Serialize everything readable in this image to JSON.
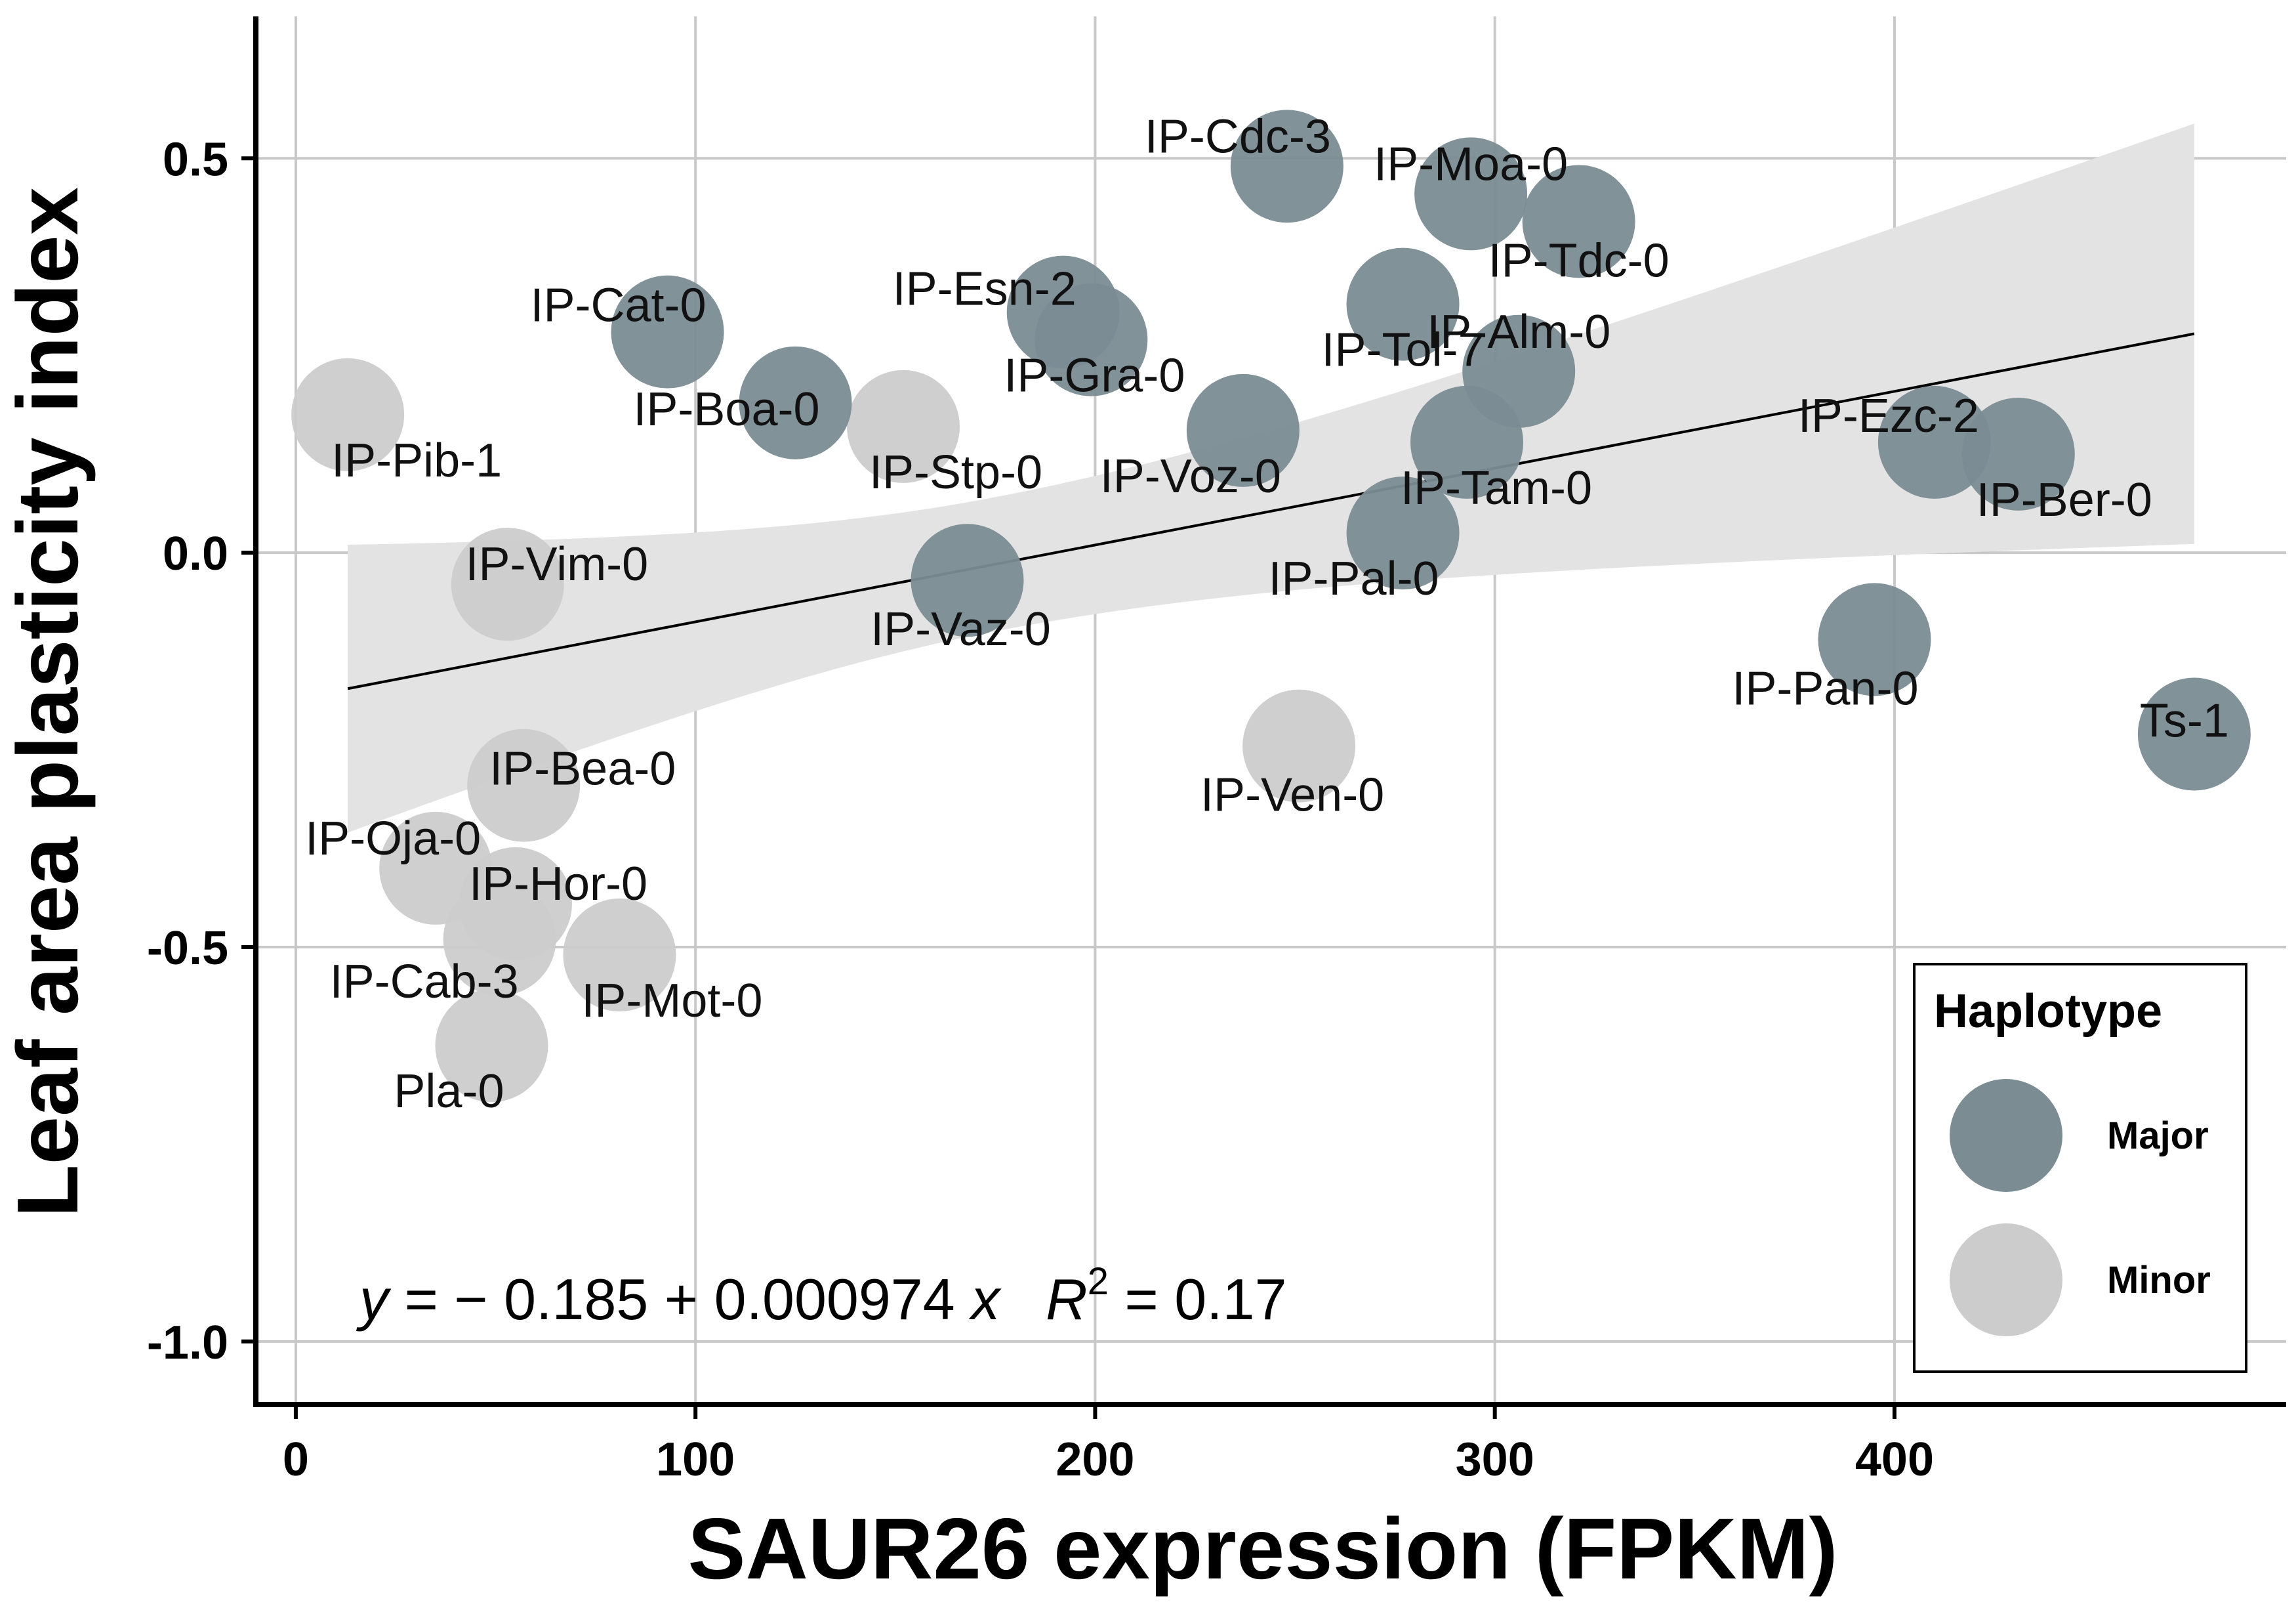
{
  "chart_data": {
    "type": "scatter",
    "xlabel": "SAUR26 expression (FPKM)",
    "ylabel": "Leaf area plasticity index",
    "xlim": [
      -10,
      498
    ],
    "ylim": [
      -1.08,
      0.68
    ],
    "xticks": [
      0,
      100,
      200,
      300,
      400
    ],
    "yticks": [
      0.5,
      0.0,
      -0.5,
      -1.0
    ],
    "xtick_labels": [
      "0",
      "100",
      "200",
      "300",
      "400"
    ],
    "ytick_labels": [
      "0.5",
      "0.0",
      "-0.5",
      "-1.0"
    ],
    "grid": true,
    "legend": {
      "title": "Haplotype",
      "position": "bottom-right",
      "entries": [
        {
          "label": "Major",
          "color": "#7b8c93"
        },
        {
          "label": "Minor",
          "color": "#cccccc"
        }
      ]
    },
    "fit": {
      "intercept": -0.185,
      "slope": 0.000974,
      "x_range": [
        13,
        475
      ],
      "ci_left": [
        -0.332,
        0.033
      ],
      "ci_right": [
        0.012,
        0.545
      ]
    },
    "equation": {
      "y": "y",
      "body": " = − 0.185 + 0.000974 ",
      "x": "x",
      "r": "R",
      "sup": "2",
      "tail": " = 0.17"
    },
    "points": [
      {
        "label": "IP-Cdc-3",
        "x": 248,
        "y": 0.49,
        "group": "Major"
      },
      {
        "label": "IP-Moa-0",
        "x": 294,
        "y": 0.455,
        "group": "Major"
      },
      {
        "label": "IP-Tdc-0",
        "x": 321,
        "y": 0.42,
        "group": "Major"
      },
      {
        "label": "IP-Tol-7",
        "x": 277,
        "y": 0.315,
        "group": "Major"
      },
      {
        "label": "IP-Esn-2",
        "x": 192,
        "y": 0.305,
        "group": "Major"
      },
      {
        "label": "IP-Gra-0",
        "x": 199,
        "y": 0.27,
        "group": "Major"
      },
      {
        "label": "IP-Cat-0",
        "x": 93,
        "y": 0.28,
        "group": "Major"
      },
      {
        "label": "IP-Alm-0",
        "x": 306,
        "y": 0.23,
        "group": "Major"
      },
      {
        "label": "IP-Boa-0",
        "x": 125,
        "y": 0.19,
        "group": "Major"
      },
      {
        "label": "IP-Voz-0",
        "x": 237,
        "y": 0.155,
        "group": "Major"
      },
      {
        "label": "IP-Tam-0",
        "x": 293,
        "y": 0.14,
        "group": "Major"
      },
      {
        "label": "IP-Ezc-2",
        "x": 410,
        "y": 0.14,
        "group": "Major"
      },
      {
        "label": "IP-Ber-0",
        "x": 431,
        "y": 0.125,
        "group": "Major"
      },
      {
        "label": "IP-Pal-0",
        "x": 277,
        "y": 0.025,
        "group": "Major"
      },
      {
        "label": "IP-Vaz-0",
        "x": 168,
        "y": -0.035,
        "group": "Major"
      },
      {
        "label": "IP-Pan-0",
        "x": 395,
        "y": -0.11,
        "group": "Major"
      },
      {
        "label": "Ts-1",
        "x": 475,
        "y": -0.23,
        "group": "Major"
      },
      {
        "label": "IP-Pib-1",
        "x": 13,
        "y": 0.175,
        "group": "Minor"
      },
      {
        "label": "IP-Stp-0",
        "x": 152,
        "y": 0.16,
        "group": "Minor"
      },
      {
        "label": "IP-Vim-0",
        "x": 53,
        "y": -0.04,
        "group": "Minor"
      },
      {
        "label": "IP-Ven-0",
        "x": 251,
        "y": -0.245,
        "group": "Minor"
      },
      {
        "label": "IP-Bea-0",
        "x": 57,
        "y": -0.295,
        "group": "Minor"
      },
      {
        "label": "IP-Oja-0",
        "x": 35,
        "y": -0.4,
        "group": "Minor"
      },
      {
        "label": "IP-Hor-0",
        "x": 55,
        "y": -0.445,
        "group": "Minor"
      },
      {
        "label": "IP-Cab-3",
        "x": 51,
        "y": -0.49,
        "group": "Minor"
      },
      {
        "label": "IP-Mot-0",
        "x": 81,
        "y": -0.51,
        "group": "Minor"
      },
      {
        "label": "Pla-0",
        "x": 49,
        "y": -0.625,
        "group": "Minor"
      }
    ]
  }
}
